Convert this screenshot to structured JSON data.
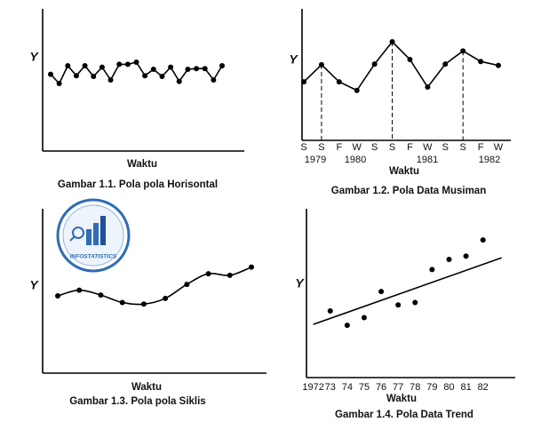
{
  "watermark": "INFOSTATISTICS",
  "chart_data": [
    {
      "type": "line",
      "xlabel": "Waktu",
      "ylabel": "Y",
      "caption": "Gambar 1.1. Pola pola Horisontal",
      "values": [
        5.4,
        4.75,
        6,
        5.3,
        6,
        5.25,
        5.9,
        5,
        6.1,
        6.1,
        6.25,
        5.3,
        5.75,
        5.25,
        5.9,
        4.9,
        5.75,
        5.8,
        5.8,
        5,
        6
      ],
      "ylim": [
        0,
        10
      ],
      "color": "#000000"
    },
    {
      "type": "line",
      "xlabel": "Waktu",
      "ylabel": "Y",
      "caption": "Gambar 1.2. Pola Data Musiman",
      "categories": [
        "S",
        "S",
        "F",
        "W",
        "S",
        "S",
        "F",
        "W",
        "S",
        "S",
        "F",
        "W"
      ],
      "period_labels": [
        "1979",
        "1980",
        "1981",
        "1982"
      ],
      "values": [
        4.45,
        5.75,
        4.45,
        3.8,
        5.8,
        7.5,
        6.15,
        4.05,
        5.8,
        6.8,
        6.0,
        5.7
      ],
      "drop_lines_at": [
        1,
        5,
        9
      ],
      "ylim": [
        0,
        10
      ],
      "color": "#000000"
    },
    {
      "type": "line",
      "smooth": true,
      "xlabel": "Waktu",
      "ylabel": "Y",
      "caption": "Gambar 1.3. Pola pola Siklis",
      "values": [
        4.7,
        5.05,
        4.75,
        4.3,
        4.2,
        4.55,
        5.4,
        6.05,
        5.95,
        6.45
      ],
      "ylim": [
        0,
        10
      ],
      "color": "#000000"
    },
    {
      "type": "scatter",
      "xlabel": "Waktu",
      "ylabel": "Y",
      "caption": "Gambar 1.4. Pola Data Trend",
      "x": [
        1973,
        1974,
        1975,
        1976,
        1977,
        1978,
        1979,
        1980,
        1981,
        1982
      ],
      "values": [
        3.95,
        3.1,
        3.55,
        5.1,
        4.3,
        4.45,
        6.4,
        7.0,
        7.2,
        8.15
      ],
      "trend_line": {
        "x": [
          1972,
          1983.1
        ],
        "y": [
          3.15,
          7.1
        ]
      },
      "xlim": [
        1971.6,
        1983.9
      ],
      "ylim": [
        0,
        10
      ],
      "xticks": [
        1972,
        {
          "value": 1973,
          "label": "73"
        },
        {
          "value": 1974,
          "label": "74"
        },
        {
          "value": 1975,
          "label": "75"
        },
        {
          "value": 1976,
          "label": "76"
        },
        {
          "value": 1977,
          "label": "77"
        },
        {
          "value": 1978,
          "label": "78"
        },
        {
          "value": 1979,
          "label": "79"
        },
        {
          "value": 1980,
          "label": "80"
        },
        {
          "value": 1981,
          "label": "81"
        },
        {
          "value": 1982,
          "label": "82"
        }
      ],
      "color": "#000000"
    }
  ]
}
